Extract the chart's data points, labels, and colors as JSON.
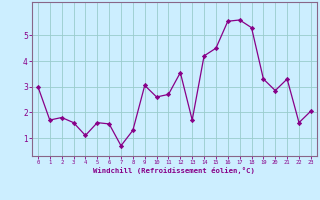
{
  "x": [
    0,
    1,
    2,
    3,
    4,
    5,
    6,
    7,
    8,
    9,
    10,
    11,
    12,
    13,
    14,
    15,
    16,
    17,
    18,
    19,
    20,
    21,
    22,
    23
  ],
  "y": [
    3.0,
    1.7,
    1.8,
    1.6,
    1.1,
    1.6,
    1.55,
    0.7,
    1.3,
    3.05,
    2.6,
    2.7,
    3.55,
    1.7,
    4.2,
    4.5,
    5.55,
    5.6,
    5.3,
    3.3,
    2.85,
    3.3,
    1.6,
    2.05
  ],
  "line_color": "#880088",
  "marker": "D",
  "markersize": 2.2,
  "linewidth": 0.9,
  "bg_color": "#cceeff",
  "grid_color": "#99cccc",
  "xlabel": "Windchill (Refroidissement éolien,°C)",
  "xlabel_color": "#880088",
  "xtick_labels": [
    "0",
    "1",
    "2",
    "3",
    "4",
    "5",
    "6",
    "7",
    "8",
    "9",
    "10",
    "11",
    "12",
    "13",
    "14",
    "15",
    "16",
    "17",
    "18",
    "19",
    "20",
    "21",
    "22",
    "23"
  ],
  "ytick_values": [
    1,
    2,
    3,
    4,
    5
  ],
  "ylim": [
    0.3,
    6.3
  ],
  "xlim": [
    -0.5,
    23.5
  ],
  "tick_color": "#880088",
  "spine_color": "#880088"
}
